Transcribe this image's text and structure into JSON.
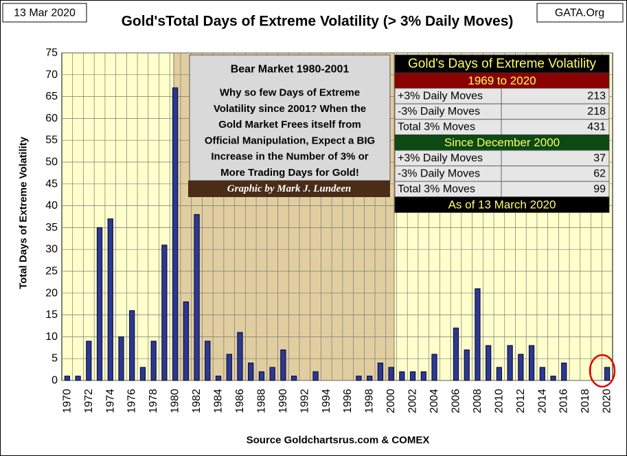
{
  "chart_data": {
    "type": "bar",
    "title": "Gold'sTotal Days of Extreme Volatility (> 3% Daily Moves)",
    "date_label": "13 Mar 2020",
    "site_label": "GATA.Org",
    "ylabel": "Total Days of Extreme Volatility",
    "source": "Source Goldchartsrus.com & COMEX",
    "categories": [
      "1970",
      null,
      "1972",
      null,
      "1974",
      null,
      "1976",
      null,
      "1978",
      null,
      "1980",
      null,
      "1982",
      null,
      "1984",
      null,
      "1986",
      null,
      "1988",
      null,
      "1990",
      null,
      "1992",
      null,
      "1994",
      null,
      "1996",
      null,
      "1998",
      null,
      "2000",
      null,
      "2002",
      null,
      "2004",
      null,
      "2006",
      null,
      "2008",
      null,
      "2010",
      null,
      "2012",
      null,
      "2014",
      null,
      "2016",
      null,
      "2018",
      null,
      "2020"
    ],
    "values": [
      1,
      1,
      9,
      35,
      37,
      10,
      16,
      3,
      9,
      31,
      67,
      18,
      38,
      9,
      1,
      6,
      11,
      4,
      2,
      3,
      7,
      1,
      0,
      2,
      0,
      0,
      0,
      1,
      1,
      4,
      3,
      2,
      2,
      2,
      6,
      0,
      12,
      7,
      21,
      8,
      3,
      8,
      6,
      8,
      3,
      1,
      4,
      0,
      0,
      0,
      3
    ],
    "color": "#2b3990",
    "ylim": [
      0,
      75
    ],
    "yticks": [
      0,
      5,
      10,
      15,
      20,
      25,
      30,
      35,
      40,
      45,
      50,
      55,
      60,
      65,
      70,
      75
    ],
    "grid": true
  },
  "annotation": {
    "title": "Bear Market  1980-2001",
    "lines": [
      "Why so few Days of Extreme",
      "Volatility since 2001?  When the",
      "Gold Market Frees itself from",
      "Official Manipulation, Expect a BIG",
      "Increase in the Number of 3% or",
      "More Trading Days for Gold!"
    ],
    "credit": "Graphic by Mark J. Lundeen"
  },
  "table": {
    "title": "Gold's Days of Extreme Volatility",
    "sections": [
      {
        "heading": "1969 to 2020",
        "rows": [
          {
            "label": "+3% Daily Moves",
            "value": 213
          },
          {
            "label": "-3% Daily Moves",
            "value": 218
          },
          {
            "label": "Total 3% Moves",
            "value": 431
          }
        ]
      },
      {
        "heading": "Since December 2000",
        "rows": [
          {
            "label": "+3% Daily Moves",
            "value": 37
          },
          {
            "label": "-3% Daily Moves",
            "value": 62
          },
          {
            "label": "Total 3% Moves",
            "value": 99
          }
        ]
      }
    ],
    "footer": "As of 13 March 2020"
  }
}
